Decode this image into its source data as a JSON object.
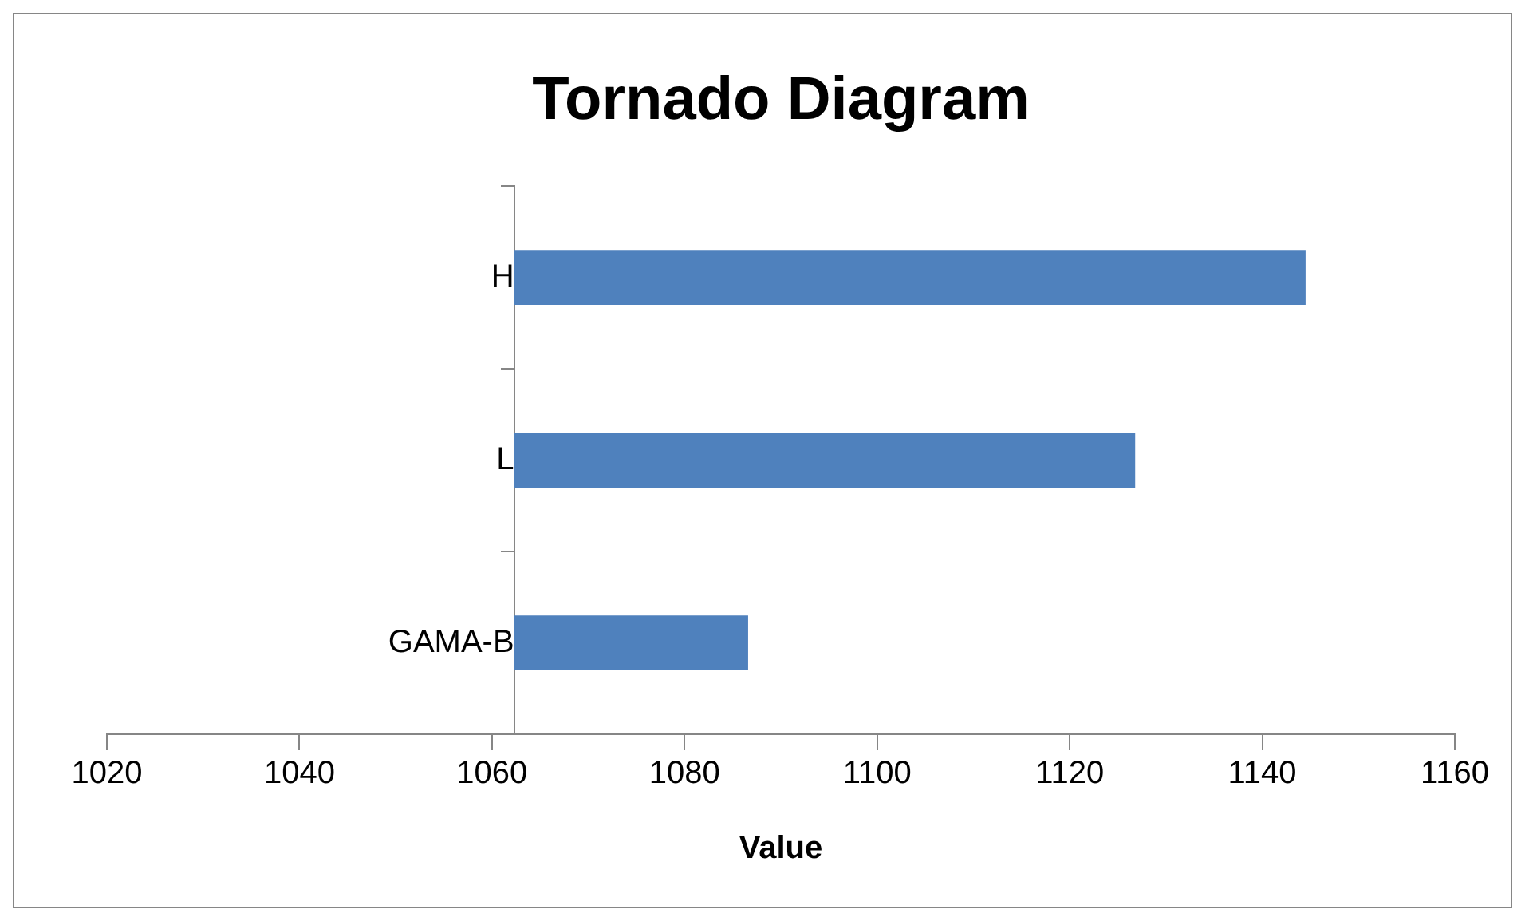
{
  "chart_data": {
    "type": "bar",
    "orientation": "horizontal",
    "title": "Tornado Diagram",
    "xlabel": "Value",
    "categories": [
      "H",
      "L",
      "GAMA-B"
    ],
    "base": [
      1062.3,
      1062.3,
      1062.3
    ],
    "values": [
      82.2,
      64.5,
      24.3
    ],
    "color": "#4f81bd",
    "xlim": [
      1020,
      1160
    ],
    "xticks": [
      1020,
      1040,
      1060,
      1080,
      1100,
      1120,
      1140,
      1160
    ],
    "grid": false,
    "legend": false
  }
}
